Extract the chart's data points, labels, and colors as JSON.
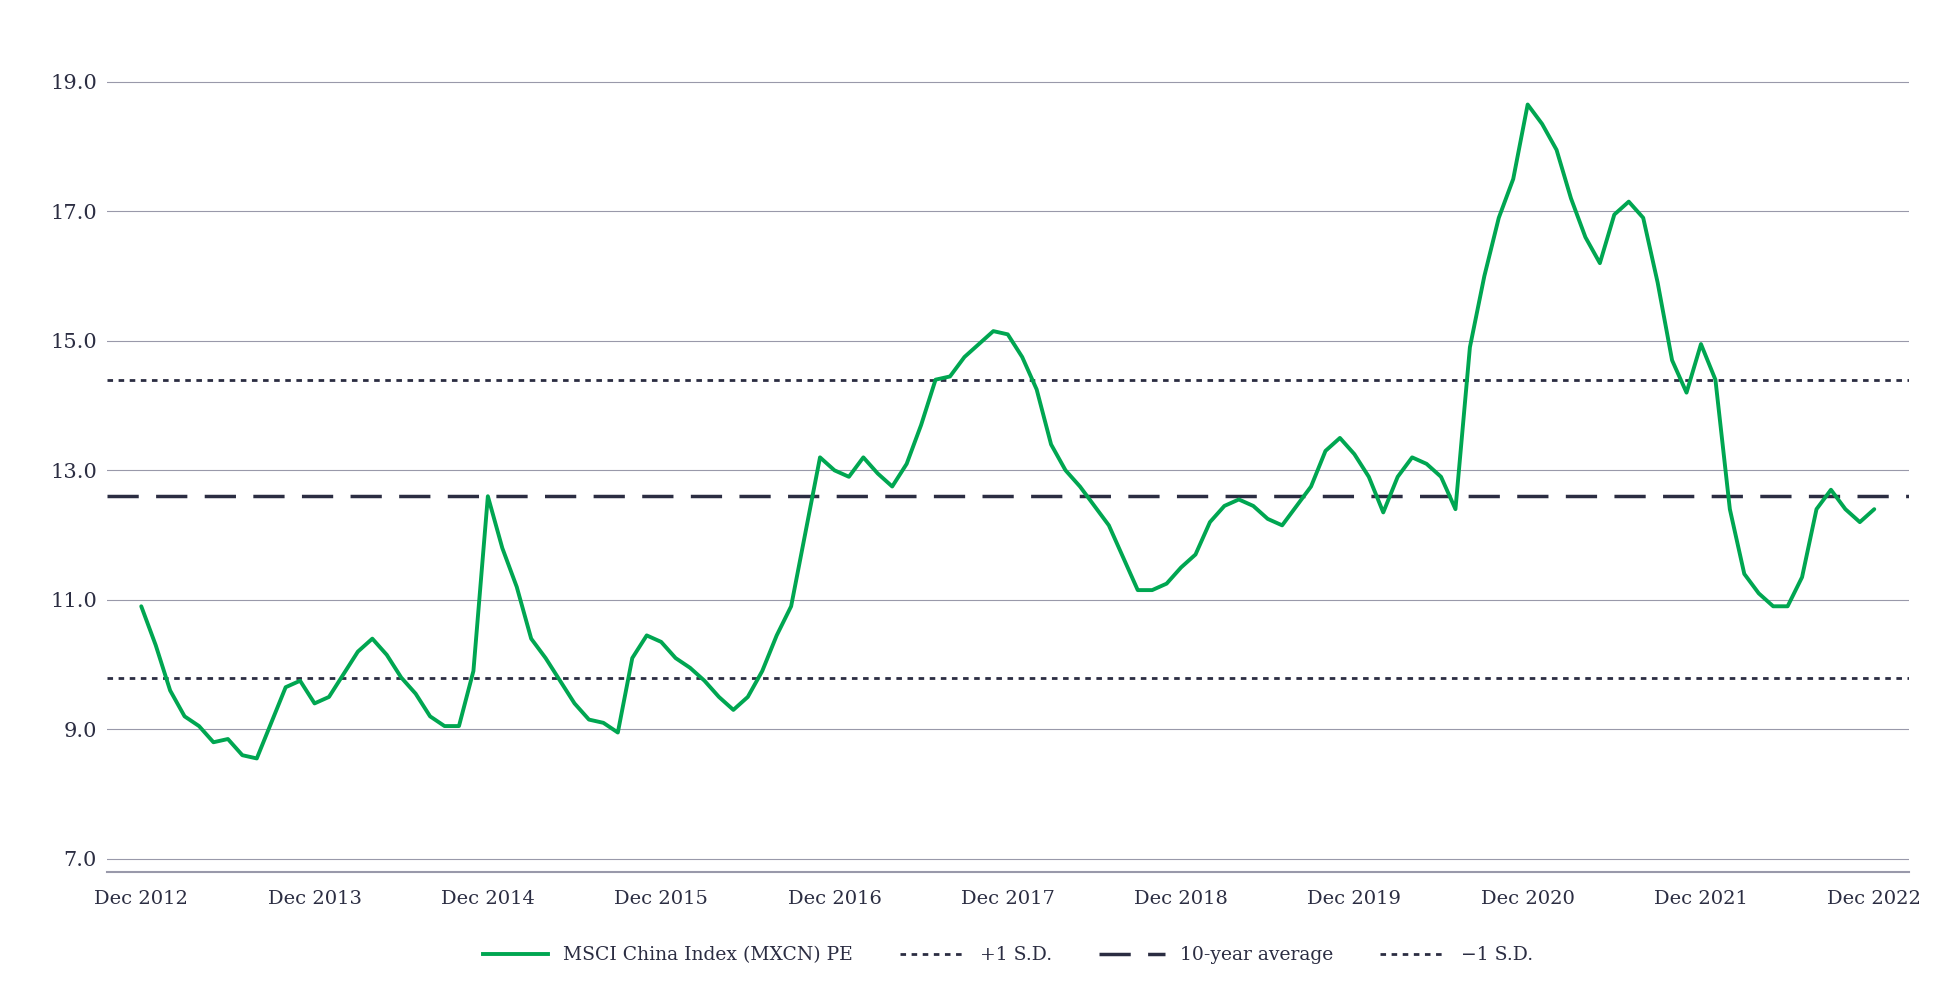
{
  "ylim": [
    6.8,
    19.8
  ],
  "yticks": [
    7.0,
    9.0,
    11.0,
    13.0,
    15.0,
    17.0,
    19.0
  ],
  "avg_10yr": 12.6,
  "plus1sd": 14.4,
  "minus1sd": 9.8,
  "line_color": "#00a651",
  "ref_color": "#2b2d42",
  "background_color": "#ffffff",
  "grid_color": "#9999aa",
  "x_labels": [
    "Dec 2012",
    "Dec 2013",
    "Dec 2014",
    "Dec 2015",
    "Dec 2016",
    "Dec 2017",
    "Dec 2018",
    "Dec 2019",
    "Dec 2020",
    "Dec 2021",
    "Dec 2022"
  ],
  "legend_labels": [
    "MSCI China Index (MXCN) PE",
    "+1 S.D.",
    "10-year average",
    "−1 S.D."
  ],
  "pe_values": [
    10.9,
    10.3,
    9.6,
    9.2,
    9.05,
    8.8,
    8.85,
    8.6,
    8.55,
    9.1,
    9.65,
    9.75,
    9.4,
    9.5,
    9.85,
    10.2,
    10.4,
    10.15,
    9.8,
    9.55,
    9.2,
    9.05,
    9.05,
    9.9,
    12.6,
    11.8,
    11.2,
    10.4,
    10.1,
    9.75,
    9.4,
    9.15,
    9.1,
    8.95,
    10.1,
    10.45,
    10.35,
    10.1,
    9.95,
    9.75,
    9.5,
    9.3,
    9.5,
    9.9,
    10.45,
    10.9,
    12.05,
    13.2,
    13.0,
    12.9,
    13.2,
    12.95,
    12.75,
    13.1,
    13.7,
    14.4,
    14.45,
    14.75,
    14.95,
    15.15,
    15.1,
    14.75,
    14.25,
    13.4,
    13.0,
    12.75,
    12.45,
    12.15,
    11.65,
    11.15,
    11.15,
    11.25,
    11.5,
    11.7,
    12.2,
    12.45,
    12.55,
    12.45,
    12.25,
    12.15,
    12.45,
    12.75,
    13.3,
    13.5,
    13.25,
    12.9,
    12.35,
    12.9,
    13.2,
    13.1,
    12.9,
    12.4,
    14.9,
    16.0,
    16.9,
    17.5,
    18.65,
    18.35,
    17.95,
    17.2,
    16.6,
    16.2,
    16.95,
    17.15,
    16.9,
    15.9,
    14.7,
    14.2,
    14.95,
    14.4,
    12.4,
    11.4,
    11.1,
    10.9,
    10.9,
    11.35,
    12.4,
    12.7,
    12.4,
    12.2,
    12.4
  ]
}
